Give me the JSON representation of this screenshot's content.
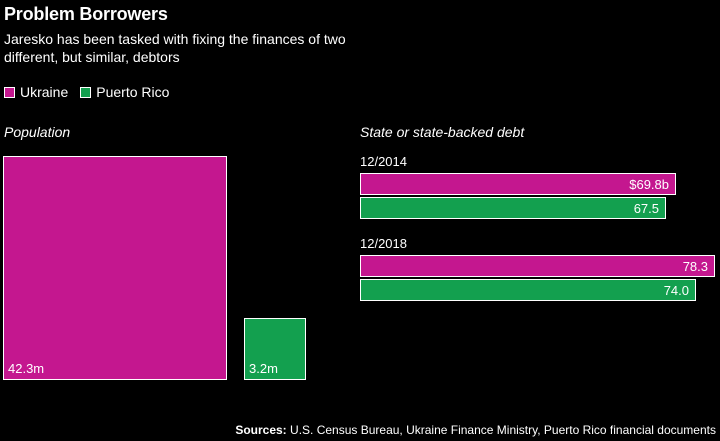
{
  "chart_data": {
    "type": "bar",
    "title": "Problem Borrowers",
    "subtitle": "Jaresko has been tasked with fixing the finances of two different, but similar, debtors",
    "legend": [
      {
        "name": "Ukraine",
        "color": "#c4178f"
      },
      {
        "name": "Puerto Rico",
        "color": "#13a04f"
      }
    ],
    "population": {
      "label": "Population",
      "unit": "millions",
      "values": [
        {
          "series": "Ukraine",
          "value": 42.3,
          "label": "42.3m"
        },
        {
          "series": "Puerto Rico",
          "value": 3.2,
          "label": "3.2m"
        }
      ]
    },
    "debt": {
      "label": "State or state-backed debt",
      "unit": "billions USD",
      "xlim": [
        0,
        78.3
      ],
      "periods": [
        {
          "period": "12/2014",
          "series": [
            {
              "name": "Ukraine",
              "value": 69.8,
              "label": "$69.8b"
            },
            {
              "name": "Puerto Rico",
              "value": 67.5,
              "label": "67.5"
            }
          ]
        },
        {
          "period": "12/2018",
          "series": [
            {
              "name": "Ukraine",
              "value": 78.3,
              "label": "78.3"
            },
            {
              "name": "Puerto Rico",
              "value": 74.0,
              "label": "74.0"
            }
          ]
        }
      ]
    },
    "sources_label": "Sources:",
    "sources_text": " U.S. Census Bureau, Ukraine Finance Ministry, Puerto Rico financial documents"
  }
}
